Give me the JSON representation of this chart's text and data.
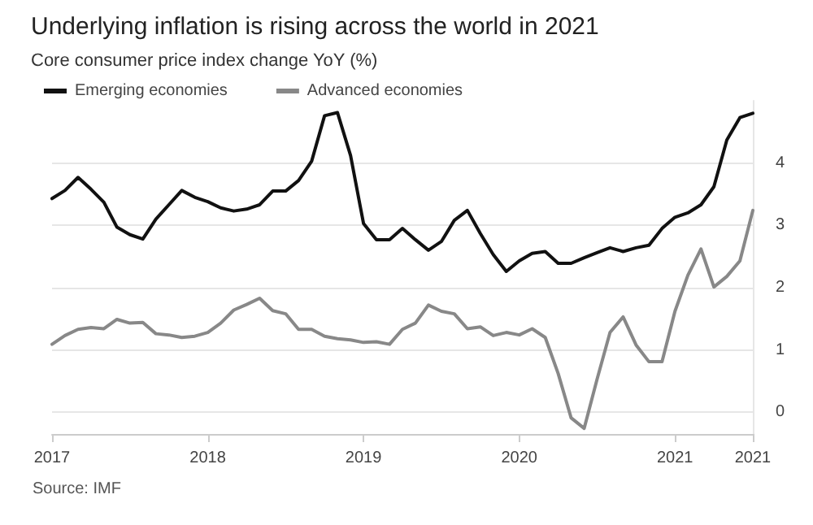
{
  "chart_data": {
    "type": "line",
    "title": "Underlying inflation is rising across the world in 2021",
    "subtitle": "Core consumer price index change YoY (%)",
    "annotations": [
      "Source: IMF"
    ],
    "x": [
      2017,
      2017.083,
      2017.167,
      2017.25,
      2017.333,
      2017.417,
      2017.5,
      2017.583,
      2017.667,
      2017.75,
      2017.833,
      2017.917,
      2018,
      2018.083,
      2018.167,
      2018.25,
      2018.333,
      2018.417,
      2018.5,
      2018.583,
      2018.667,
      2018.75,
      2018.833,
      2018.917,
      2019,
      2019.083,
      2019.167,
      2019.25,
      2019.333,
      2019.417,
      2019.5,
      2019.583,
      2019.667,
      2019.75,
      2019.833,
      2019.917,
      2020,
      2020.083,
      2020.167,
      2020.25,
      2020.333,
      2020.417,
      2020.5,
      2020.583,
      2020.667,
      2020.75,
      2020.833,
      2020.917,
      2021,
      2021.083,
      2021.167,
      2021.25,
      2021.333,
      2021.417,
      2021.5
    ],
    "series": [
      {
        "name": "Emerging economies",
        "color": "#111111",
        "values": [
          3.43,
          3.56,
          3.77,
          3.58,
          3.37,
          2.97,
          2.85,
          2.78,
          3.1,
          3.33,
          3.56,
          3.45,
          3.38,
          3.28,
          3.23,
          3.26,
          3.33,
          3.55,
          3.55,
          3.72,
          4.03,
          4.76,
          4.81,
          4.12,
          3.03,
          2.77,
          2.77,
          2.95,
          2.77,
          2.6,
          2.74,
          3.08,
          3.24,
          2.87,
          2.53,
          2.26,
          2.43,
          2.55,
          2.58,
          2.39,
          2.39,
          2.48,
          2.56,
          2.64,
          2.58,
          2.64,
          2.68,
          2.95,
          3.13,
          3.2,
          3.33,
          3.62,
          4.37,
          4.73,
          4.8
        ]
      },
      {
        "name": "Advanced economies",
        "color": "#888888",
        "values": [
          1.09,
          1.23,
          1.33,
          1.36,
          1.34,
          1.49,
          1.43,
          1.44,
          1.26,
          1.24,
          1.2,
          1.22,
          1.28,
          1.43,
          1.64,
          1.73,
          1.83,
          1.63,
          1.58,
          1.33,
          1.33,
          1.22,
          1.18,
          1.16,
          1.12,
          1.13,
          1.09,
          1.33,
          1.43,
          1.72,
          1.62,
          1.58,
          1.34,
          1.37,
          1.23,
          1.28,
          1.24,
          1.34,
          1.2,
          0.62,
          -0.09,
          -0.26,
          0.53,
          1.28,
          1.53,
          1.08,
          0.81,
          0.81,
          1.62,
          2.2,
          2.62,
          2.01,
          2.18,
          2.43,
          3.24
        ]
      }
    ],
    "xlim": [
      2017,
      2021.5
    ],
    "xticks": [
      {
        "value": 2017,
        "label": "2017"
      },
      {
        "value": 2018,
        "label": "2018"
      },
      {
        "value": 2019,
        "label": "2019"
      },
      {
        "value": 2020,
        "label": "2020"
      },
      {
        "value": 2021,
        "label": "2021"
      },
      {
        "value": 2021.5,
        "label": "2021"
      }
    ],
    "ylim": [
      -0.35,
      5
    ],
    "yticks": [
      0,
      1,
      2,
      3,
      4
    ],
    "grid": "y",
    "legend": "top left",
    "marker": "none",
    "line_style": "solid"
  }
}
